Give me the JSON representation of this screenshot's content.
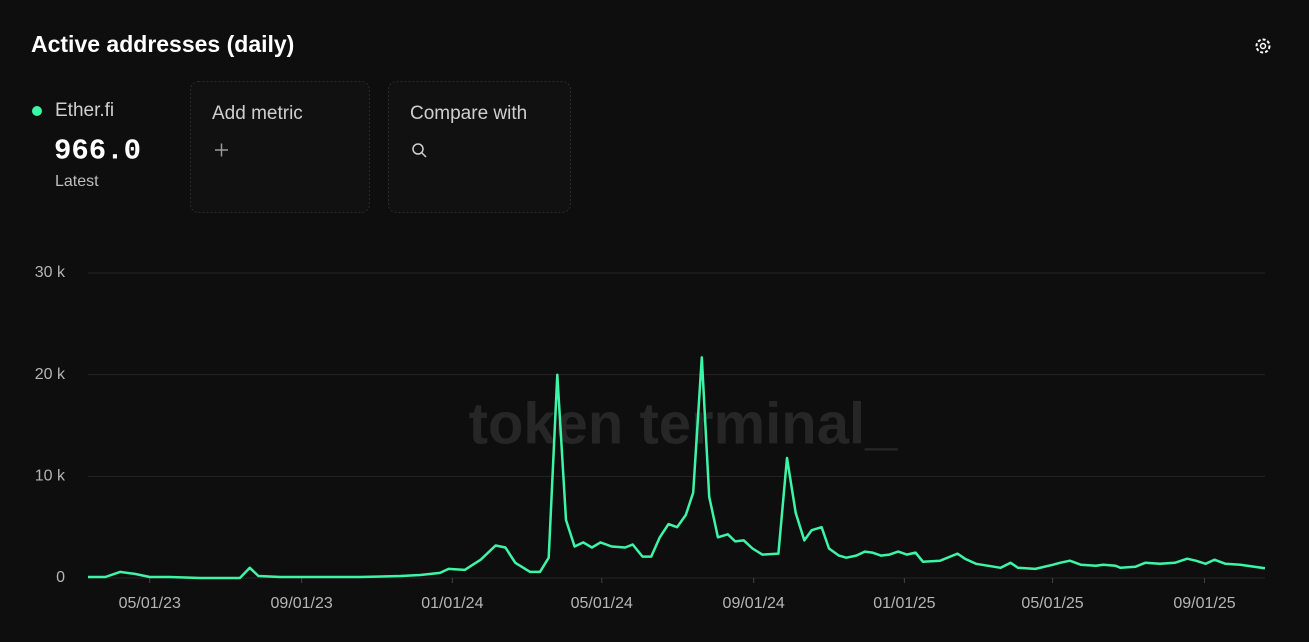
{
  "title": "Active addresses (daily)",
  "legend": {
    "name": "Ether.fi",
    "latest_value": "966.0",
    "latest_label": "Latest"
  },
  "buttons": {
    "add_metric": "Add metric",
    "compare_with": "Compare with"
  },
  "watermark": "token terminal_",
  "chart_data": {
    "type": "line",
    "x": [
      "2023-03-12",
      "2023-03-26",
      "2023-04-07",
      "2023-04-19",
      "2023-05-01",
      "2023-05-17",
      "2023-06-11",
      "2023-07-13",
      "2023-07-21",
      "2023-07-28",
      "2023-08-15",
      "2023-10-18",
      "2023-11-20",
      "2023-12-06",
      "2023-12-22",
      "2023-12-29",
      "2024-01-11",
      "2024-01-24",
      "2024-02-05",
      "2024-02-13",
      "2024-02-21",
      "2024-03-04",
      "2024-03-12",
      "2024-03-19",
      "2024-03-26",
      "2024-04-02",
      "2024-04-09",
      "2024-04-16",
      "2024-04-23",
      "2024-04-30",
      "2024-05-09",
      "2024-05-20",
      "2024-05-26",
      "2024-06-03",
      "2024-06-10",
      "2024-06-17",
      "2024-06-24",
      "2024-07-01",
      "2024-07-08",
      "2024-07-14",
      "2024-07-21",
      "2024-07-27",
      "2024-08-03",
      "2024-08-11",
      "2024-08-17",
      "2024-08-24",
      "2024-08-31",
      "2024-09-08",
      "2024-09-21",
      "2024-09-28",
      "2024-10-05",
      "2024-10-12",
      "2024-10-18",
      "2024-10-26",
      "2024-11-01",
      "2024-11-09",
      "2024-11-15",
      "2024-11-23",
      "2024-11-30",
      "2024-12-06",
      "2024-12-13",
      "2024-12-20",
      "2024-12-27",
      "2025-01-03",
      "2025-01-10",
      "2025-01-16",
      "2025-01-30",
      "2025-02-13",
      "2025-02-19",
      "2025-02-28",
      "2025-03-20",
      "2025-03-28",
      "2025-04-03",
      "2025-04-17",
      "2025-05-01",
      "2025-05-07",
      "2025-05-15",
      "2025-05-24",
      "2025-06-05",
      "2025-06-11",
      "2025-06-21",
      "2025-06-25",
      "2025-07-07",
      "2025-07-15",
      "2025-07-27",
      "2025-08-08",
      "2025-08-18",
      "2025-08-25",
      "2025-09-02",
      "2025-09-09",
      "2025-09-18",
      "2025-09-30",
      "2025-10-20"
    ],
    "series": [
      {
        "name": "Ether.fi",
        "color": "#3df5a7",
        "values": [
          100,
          100,
          600,
          400,
          100,
          100,
          0,
          0,
          1000,
          200,
          100,
          100,
          200,
          300,
          500,
          900,
          800,
          1800,
          3200,
          3000,
          1500,
          600,
          600,
          2000,
          20000,
          5700,
          3100,
          3500,
          3000,
          3500,
          3100,
          3000,
          3300,
          2100,
          2100,
          4000,
          5300,
          5000,
          6200,
          8400,
          21700,
          8000,
          4000,
          4300,
          3600,
          3700,
          2900,
          2300,
          2400,
          11800,
          6400,
          3700,
          4700,
          5000,
          2900,
          2200,
          2000,
          2200,
          2600,
          2500,
          2200,
          2300,
          2600,
          2300,
          2500,
          1600,
          1700,
          2400,
          1900,
          1400,
          1000,
          1500,
          1000,
          900,
          1300,
          1500,
          1700,
          1300,
          1200,
          1300,
          1200,
          1000,
          1100,
          1500,
          1400,
          1500,
          1900,
          1700,
          1400,
          1800,
          1400,
          1300,
          966
        ]
      }
    ],
    "xlim": [
      "2023-03-12",
      "2025-10-20"
    ],
    "xticks": [
      {
        "value": "2023-05-01",
        "label": "05/01/23"
      },
      {
        "value": "2023-09-01",
        "label": "09/01/23"
      },
      {
        "value": "2024-01-01",
        "label": "01/01/24"
      },
      {
        "value": "2024-05-01",
        "label": "05/01/24"
      },
      {
        "value": "2024-09-01",
        "label": "09/01/24"
      },
      {
        "value": "2025-01-01",
        "label": "01/01/25"
      },
      {
        "value": "2025-05-01",
        "label": "05/01/25"
      },
      {
        "value": "2025-09-01",
        "label": "09/01/25"
      }
    ],
    "ylim": [
      0,
      30000
    ],
    "yticks": [
      0,
      {
        "value": 10000,
        "label": "10 k"
      },
      {
        "value": 20000,
        "label": "20 k"
      },
      {
        "value": 30000,
        "label": "30 k"
      }
    ],
    "grid": true
  }
}
